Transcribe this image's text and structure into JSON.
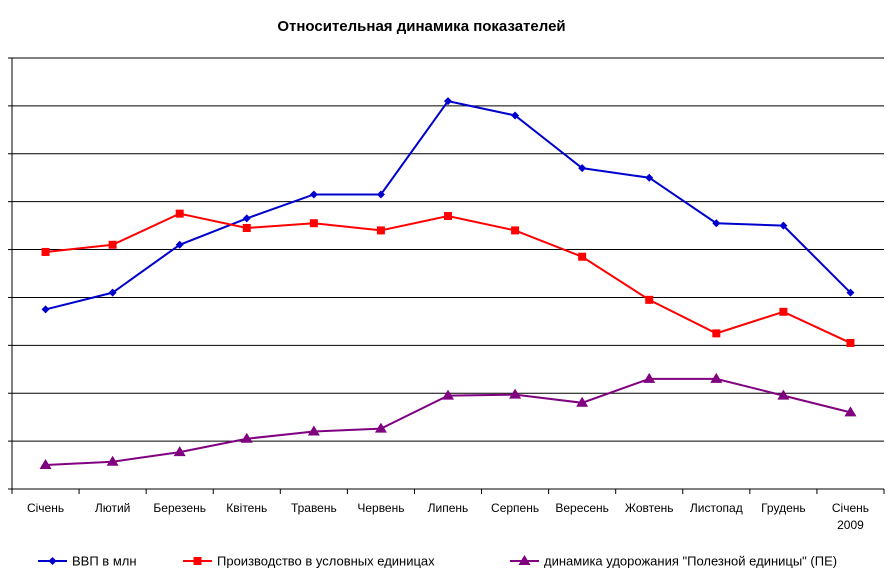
{
  "chart_data": {
    "type": "line",
    "title": "Относительная динамика показателей",
    "xlabel": "",
    "ylabel": "",
    "ylim": [
      0,
      9
    ],
    "grid": true,
    "legend_position": "bottom",
    "categories": [
      [
        "Січень"
      ],
      [
        "Лютий"
      ],
      [
        "Березень"
      ],
      [
        "Квітень"
      ],
      [
        "Травень"
      ],
      [
        "Червень"
      ],
      [
        "Липень"
      ],
      [
        "Серпень"
      ],
      [
        "Вересень"
      ],
      [
        "Жовтень"
      ],
      [
        "Листопад"
      ],
      [
        "Грудень"
      ],
      [
        "Січень",
        "2009"
      ]
    ],
    "series": [
      {
        "name": "ВВП в млн",
        "color": "#0000cc",
        "marker": "diamond",
        "values": [
          3.75,
          4.1,
          5.1,
          5.65,
          6.15,
          6.15,
          8.1,
          7.8,
          6.7,
          6.5,
          5.55,
          5.5,
          4.1
        ]
      },
      {
        "name": "Производство в условных единицах",
        "color": "#ff0000",
        "marker": "square",
        "values": [
          4.95,
          5.1,
          5.75,
          5.45,
          5.55,
          5.4,
          5.7,
          5.4,
          4.85,
          3.95,
          3.25,
          3.7,
          3.05
        ]
      },
      {
        "name": "динамика удорожания \"Полезной единицы\" (ПЕ)",
        "color": "#800080",
        "marker": "triangle",
        "values": [
          0.5,
          0.57,
          0.77,
          1.05,
          1.2,
          1.26,
          1.95,
          1.97,
          1.8,
          2.3,
          2.3,
          1.95,
          1.6
        ]
      }
    ]
  }
}
